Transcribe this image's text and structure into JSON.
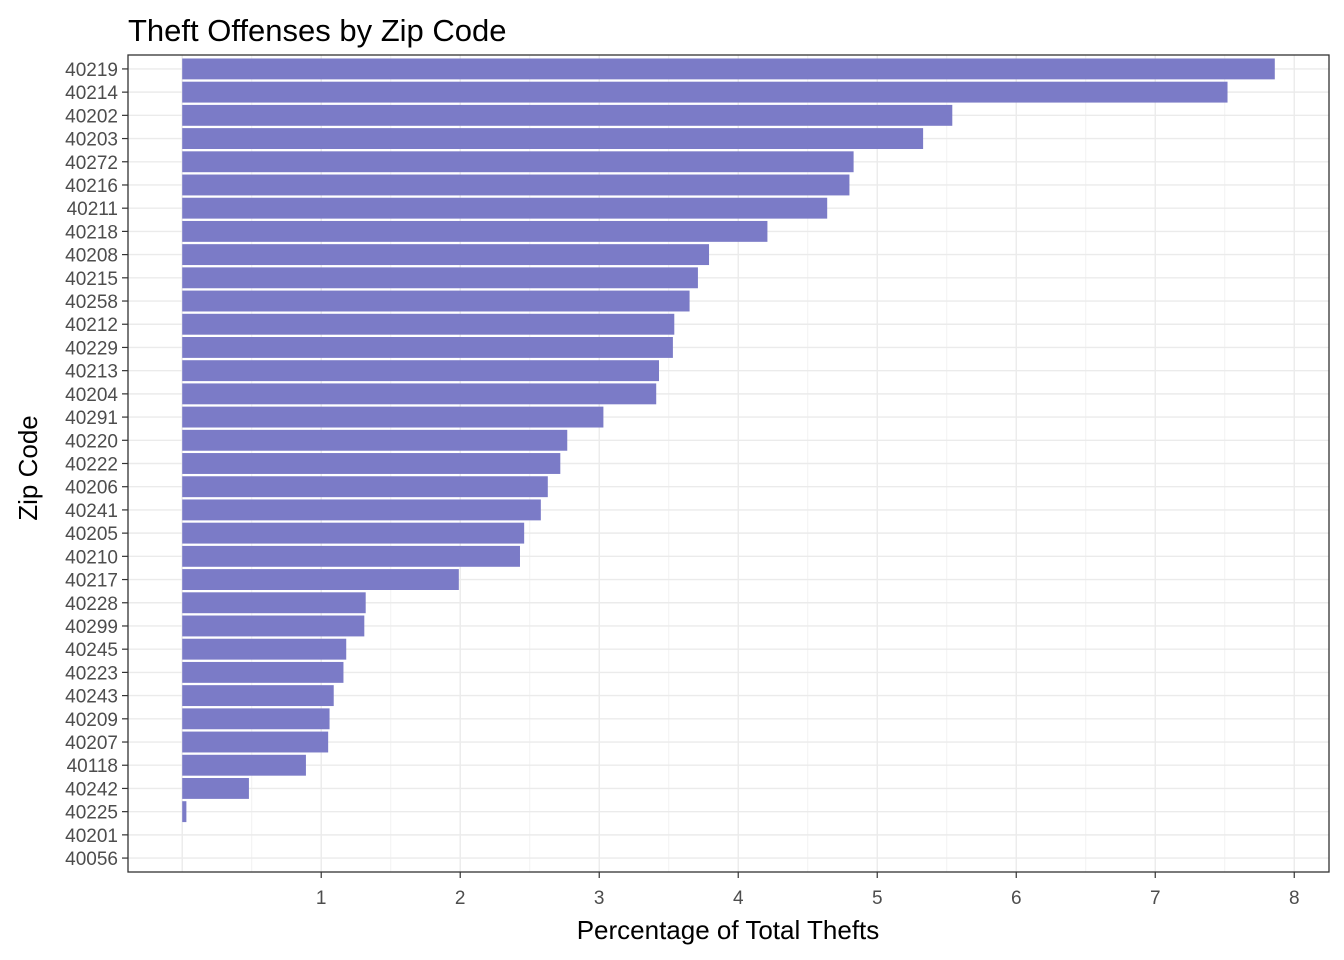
{
  "chart_data": {
    "type": "bar",
    "orientation": "horizontal",
    "title": "Theft Offenses by Zip Code",
    "xlabel": "Percentage of Total Thefts",
    "ylabel": "Zip Code",
    "xlim": [
      -0.39,
      8.25
    ],
    "xticks": [
      1,
      2,
      3,
      4,
      5,
      6,
      7,
      8
    ],
    "grid": true,
    "bar_color": "#7b7bc7",
    "categories": [
      "40219",
      "40214",
      "40202",
      "40203",
      "40272",
      "40216",
      "40211",
      "40218",
      "40208",
      "40215",
      "40258",
      "40212",
      "40229",
      "40213",
      "40204",
      "40291",
      "40220",
      "40222",
      "40206",
      "40241",
      "40205",
      "40210",
      "40217",
      "40228",
      "40299",
      "40245",
      "40223",
      "40243",
      "40209",
      "40207",
      "40118",
      "40242",
      "40225",
      "40201",
      "40056"
    ],
    "values": [
      7.86,
      7.52,
      5.54,
      5.33,
      4.83,
      4.8,
      4.64,
      4.21,
      3.79,
      3.71,
      3.65,
      3.54,
      3.53,
      3.43,
      3.41,
      3.03,
      2.77,
      2.72,
      2.63,
      2.58,
      2.46,
      2.43,
      1.99,
      1.32,
      1.31,
      1.18,
      1.16,
      1.09,
      1.06,
      1.05,
      0.89,
      0.48,
      0.03,
      0,
      0
    ]
  }
}
